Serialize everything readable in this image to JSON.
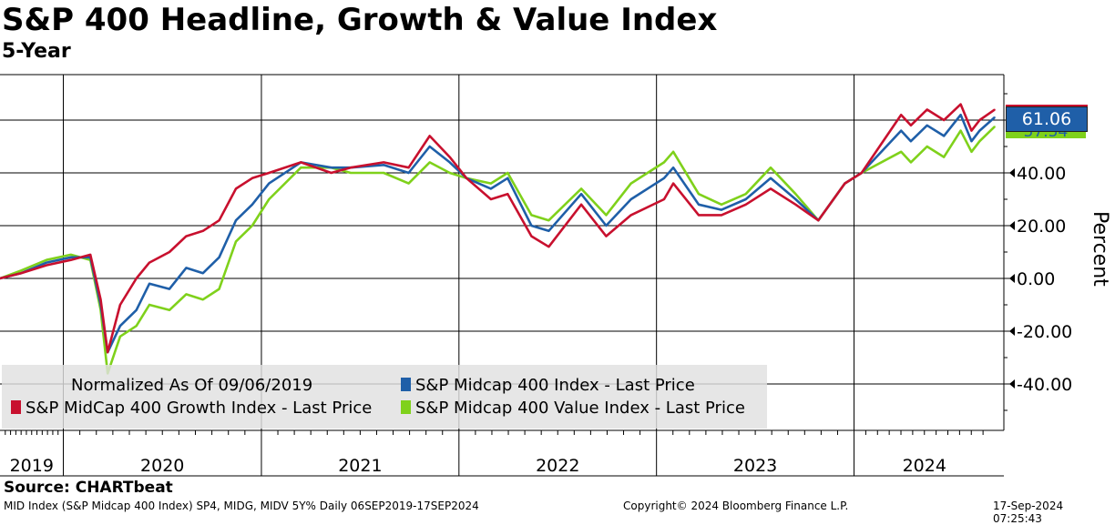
{
  "title": "S&P 400 Headline, Growth & Value Index",
  "subtitle": "5-Year",
  "source": "Source: CHARTbeat",
  "footer": {
    "left": "MID Index (S&P Midcap 400 Index) SP4, MIDG, MIDV 5Y%  Daily 06SEP2019-17SEP2024",
    "center": "Copyright© 2024 Bloomberg Finance L.P.",
    "right": "17-Sep-2024 07:25:43"
  },
  "legend": {
    "note": "Normalized As Of 09/06/2019",
    "items": [
      {
        "label": "S&P Midcap 400 Index - Last Price",
        "color": "#1f5fa8"
      },
      {
        "label": "S&P MidCap 400 Growth Index - Last Price",
        "color": "#c8102e"
      },
      {
        "label": "S&P Midcap 400 Value Index - Last Price",
        "color": "#7fd11b"
      }
    ]
  },
  "last_values": {
    "main": "61.06",
    "value_partial": "57.54"
  },
  "chart_data": {
    "type": "line",
    "ylabel": "Percent",
    "ylim": [
      -57,
      77
    ],
    "yticks": [
      -40,
      -20,
      0,
      20,
      40
    ],
    "ytick_labels": [
      "-40.00",
      "-20.00",
      "0.00",
      "20.00",
      "40.00"
    ],
    "x_year_labels": [
      "2019",
      "2020",
      "2021",
      "2022",
      "2023",
      "2024"
    ],
    "xlim": [
      "2019-09-06",
      "2024-09-17"
    ],
    "year_boundaries": [
      "2020-01-01",
      "2021-01-01",
      "2022-01-01",
      "2023-01-01",
      "2024-01-01"
    ],
    "grid": true,
    "legend_position": "bottom-left",
    "series": [
      {
        "name": "S&P Midcap 400 Index - Last Price",
        "color": "#1f5fa8",
        "x": [
          "2019-09-06",
          "2019-10-15",
          "2019-12-01",
          "2020-01-15",
          "2020-02-20",
          "2020-03-10",
          "2020-03-23",
          "2020-04-15",
          "2020-05-15",
          "2020-06-08",
          "2020-07-15",
          "2020-08-15",
          "2020-09-15",
          "2020-10-15",
          "2020-11-15",
          "2020-12-15",
          "2021-01-15",
          "2021-03-15",
          "2021-05-10",
          "2021-06-15",
          "2021-08-15",
          "2021-09-30",
          "2021-11-08",
          "2021-12-15",
          "2022-01-15",
          "2022-03-01",
          "2022-04-01",
          "2022-05-15",
          "2022-06-16",
          "2022-08-15",
          "2022-09-30",
          "2022-11-15",
          "2023-01-15",
          "2023-02-01",
          "2023-03-20",
          "2023-05-01",
          "2023-06-15",
          "2023-07-31",
          "2023-09-15",
          "2023-10-27",
          "2023-12-15",
          "2024-01-15",
          "2024-03-28",
          "2024-04-15",
          "2024-05-15",
          "2024-06-15",
          "2024-07-16",
          "2024-08-05",
          "2024-08-20",
          "2024-09-17"
        ],
        "y": [
          0,
          2,
          6,
          8,
          8,
          -10,
          -28,
          -18,
          -12,
          -2,
          -4,
          4,
          2,
          8,
          22,
          28,
          36,
          44,
          42,
          42,
          43,
          40,
          50,
          44,
          38,
          34,
          38,
          20,
          18,
          32,
          20,
          30,
          38,
          42,
          28,
          26,
          30,
          38,
          30,
          22,
          36,
          40,
          56,
          52,
          58,
          54,
          62,
          52,
          56,
          61.06
        ]
      },
      {
        "name": "S&P MidCap 400 Growth Index - Last Price",
        "color": "#c8102e",
        "x": [
          "2019-09-06",
          "2019-10-15",
          "2019-12-01",
          "2020-01-15",
          "2020-02-20",
          "2020-03-10",
          "2020-03-23",
          "2020-04-15",
          "2020-05-15",
          "2020-06-08",
          "2020-07-15",
          "2020-08-15",
          "2020-09-15",
          "2020-10-15",
          "2020-11-15",
          "2020-12-15",
          "2021-01-15",
          "2021-03-15",
          "2021-05-10",
          "2021-06-15",
          "2021-08-15",
          "2021-09-30",
          "2021-11-08",
          "2021-12-15",
          "2022-01-15",
          "2022-03-01",
          "2022-04-01",
          "2022-05-15",
          "2022-06-16",
          "2022-08-15",
          "2022-09-30",
          "2022-11-15",
          "2023-01-15",
          "2023-02-01",
          "2023-03-20",
          "2023-05-01",
          "2023-06-15",
          "2023-07-31",
          "2023-09-15",
          "2023-10-27",
          "2023-12-15",
          "2024-01-15",
          "2024-03-28",
          "2024-04-15",
          "2024-05-15",
          "2024-06-15",
          "2024-07-16",
          "2024-08-05",
          "2024-08-20",
          "2024-09-17"
        ],
        "y": [
          0,
          2,
          5,
          7,
          9,
          -8,
          -28,
          -10,
          0,
          6,
          10,
          16,
          18,
          22,
          34,
          38,
          40,
          44,
          40,
          42,
          44,
          42,
          54,
          46,
          38,
          30,
          32,
          16,
          12,
          28,
          16,
          24,
          30,
          36,
          24,
          24,
          28,
          34,
          28,
          22,
          36,
          40,
          62,
          58,
          64,
          60,
          66,
          56,
          60,
          64
        ]
      },
      {
        "name": "S&P Midcap 400 Value Index - Last Price",
        "color": "#7fd11b",
        "x": [
          "2019-09-06",
          "2019-10-15",
          "2019-12-01",
          "2020-01-15",
          "2020-02-20",
          "2020-03-10",
          "2020-03-23",
          "2020-04-15",
          "2020-05-15",
          "2020-06-08",
          "2020-07-15",
          "2020-08-15",
          "2020-09-15",
          "2020-10-15",
          "2020-11-15",
          "2020-12-15",
          "2021-01-15",
          "2021-03-15",
          "2021-05-10",
          "2021-06-15",
          "2021-08-15",
          "2021-09-30",
          "2021-11-08",
          "2021-12-15",
          "2022-01-15",
          "2022-03-01",
          "2022-04-01",
          "2022-05-15",
          "2022-06-16",
          "2022-08-15",
          "2022-09-30",
          "2022-11-15",
          "2023-01-15",
          "2023-02-01",
          "2023-03-20",
          "2023-05-01",
          "2023-06-15",
          "2023-07-31",
          "2023-09-15",
          "2023-10-27",
          "2023-12-15",
          "2024-01-15",
          "2024-03-28",
          "2024-04-15",
          "2024-05-15",
          "2024-06-15",
          "2024-07-16",
          "2024-08-05",
          "2024-08-20",
          "2024-09-17"
        ],
        "y": [
          0,
          3,
          7,
          9,
          7,
          -12,
          -36,
          -22,
          -18,
          -10,
          -12,
          -6,
          -8,
          -4,
          14,
          20,
          30,
          42,
          42,
          40,
          40,
          36,
          44,
          40,
          38,
          36,
          40,
          24,
          22,
          34,
          24,
          36,
          44,
          48,
          32,
          28,
          32,
          42,
          32,
          22,
          36,
          40,
          48,
          44,
          50,
          46,
          56,
          48,
          52,
          57.54
        ]
      }
    ]
  }
}
